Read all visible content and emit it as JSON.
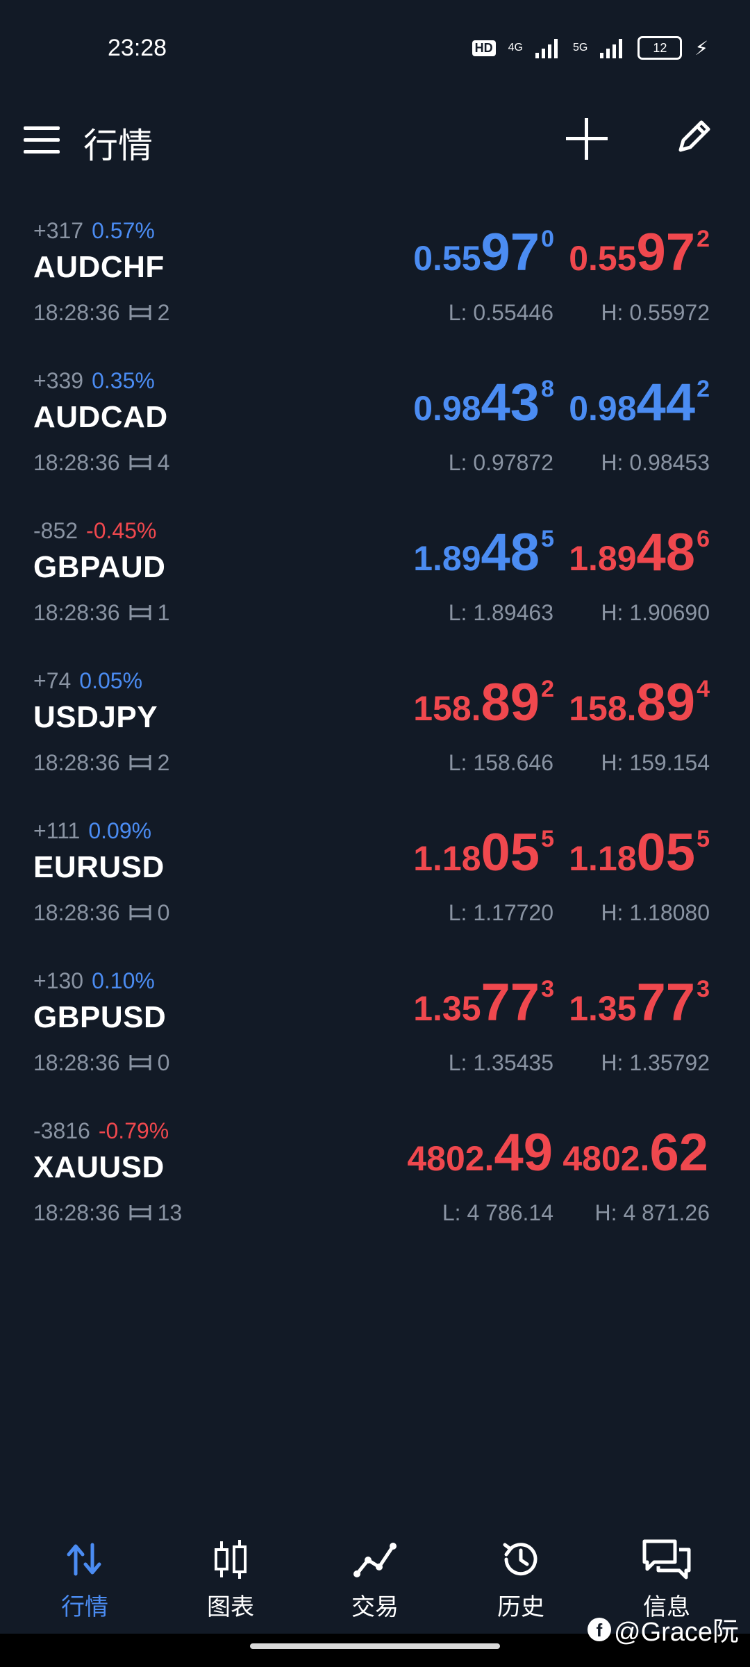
{
  "status_bar": {
    "time": "23:28",
    "hd": "HD",
    "net1": "4G",
    "net2": "5G",
    "battery": "12"
  },
  "header": {
    "title": "行情"
  },
  "quotes": [
    {
      "change_pts": "+317",
      "change_pct": "0.57%",
      "pct_color": "blue",
      "symbol": "AUDCHF",
      "time": "18:28:36",
      "spread": "2",
      "bid_pre": "0.55",
      "bid_big": "97",
      "bid_sup": "0",
      "bid_color": "blue",
      "ask_pre": "0.55",
      "ask_big": "97",
      "ask_sup": "2",
      "ask_color": "red",
      "low": "L: 0.55446",
      "high": "H: 0.55972"
    },
    {
      "change_pts": "+339",
      "change_pct": "0.35%",
      "pct_color": "blue",
      "symbol": "AUDCAD",
      "time": "18:28:36",
      "spread": "4",
      "bid_pre": "0.98",
      "bid_big": "43",
      "bid_sup": "8",
      "bid_color": "blue",
      "ask_pre": "0.98",
      "ask_big": "44",
      "ask_sup": "2",
      "ask_color": "blue",
      "low": "L: 0.97872",
      "high": "H: 0.98453"
    },
    {
      "change_pts": "-852",
      "change_pct": "-0.45%",
      "pct_color": "red",
      "symbol": "GBPAUD",
      "time": "18:28:36",
      "spread": "1",
      "bid_pre": "1.89",
      "bid_big": "48",
      "bid_sup": "5",
      "bid_color": "blue",
      "ask_pre": "1.89",
      "ask_big": "48",
      "ask_sup": "6",
      "ask_color": "red",
      "low": "L: 1.89463",
      "high": "H: 1.90690"
    },
    {
      "change_pts": "+74",
      "change_pct": "0.05%",
      "pct_color": "blue",
      "symbol": "USDJPY",
      "time": "18:28:36",
      "spread": "2",
      "bid_pre": "158.",
      "bid_big": "89",
      "bid_sup": "2",
      "bid_color": "red",
      "ask_pre": "158.",
      "ask_big": "89",
      "ask_sup": "4",
      "ask_color": "red",
      "low": "L: 158.646",
      "high": "H: 159.154"
    },
    {
      "change_pts": "+111",
      "change_pct": "0.09%",
      "pct_color": "blue",
      "symbol": "EURUSD",
      "time": "18:28:36",
      "spread": "0",
      "bid_pre": "1.18",
      "bid_big": "05",
      "bid_sup": "5",
      "bid_color": "red",
      "ask_pre": "1.18",
      "ask_big": "05",
      "ask_sup": "5",
      "ask_color": "red",
      "low": "L: 1.17720",
      "high": "H: 1.18080"
    },
    {
      "change_pts": "+130",
      "change_pct": "0.10%",
      "pct_color": "blue",
      "symbol": "GBPUSD",
      "time": "18:28:36",
      "spread": "0",
      "bid_pre": "1.35",
      "bid_big": "77",
      "bid_sup": "3",
      "bid_color": "red",
      "ask_pre": "1.35",
      "ask_big": "77",
      "ask_sup": "3",
      "ask_color": "red",
      "low": "L: 1.35435",
      "high": "H: 1.35792"
    },
    {
      "change_pts": "-3816",
      "change_pct": "-0.79%",
      "pct_color": "red",
      "symbol": "XAUUSD",
      "time": "18:28:36",
      "spread": "13",
      "bid_pre": "4802.",
      "bid_big": "49",
      "bid_sup": "",
      "bid_color": "red",
      "ask_pre": "4802.",
      "ask_big": "62",
      "ask_sup": "",
      "ask_color": "red",
      "low": "L: 4 786.14",
      "high": "H: 4 871.26"
    }
  ],
  "nav": [
    {
      "label": "行情",
      "icon": "quotes-arrows-icon",
      "active": true
    },
    {
      "label": "图表",
      "icon": "candlestick-icon",
      "active": false
    },
    {
      "label": "交易",
      "icon": "trade-line-icon",
      "active": false
    },
    {
      "label": "历史",
      "icon": "history-clock-icon",
      "active": false
    },
    {
      "label": "信息",
      "icon": "messages-icon",
      "active": false
    }
  ],
  "watermark": "@Grace阮",
  "colors": {
    "background": "#121a26",
    "blue": "#4b8cf2",
    "red": "#f0484e",
    "muted": "#8a94a3"
  }
}
